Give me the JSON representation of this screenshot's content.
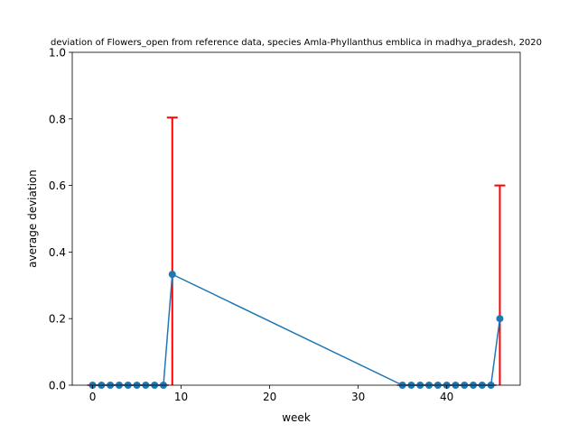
{
  "chart_data": {
    "type": "line",
    "title": "deviation of Flowers_open from reference data, species Amla-Phyllanthus emblica in madhya_pradesh, 2020",
    "xlabel": "week",
    "ylabel": "average deviation",
    "xlim": [
      -2.3,
      48.3
    ],
    "ylim": [
      0,
      1
    ],
    "x_ticks": [
      0,
      10,
      20,
      30,
      40
    ],
    "y_ticks": [
      0.0,
      0.2,
      0.4,
      0.6,
      0.8,
      1.0
    ],
    "x_tick_labels": [
      "0",
      "10",
      "20",
      "30",
      "40"
    ],
    "y_tick_labels": [
      "0.0",
      "0.2",
      "0.4",
      "0.6",
      "0.8",
      "1.0"
    ],
    "grid": false,
    "series": [
      {
        "color": "#1f77b4",
        "x": [
          0,
          1,
          2,
          3,
          4,
          5,
          6,
          7,
          8,
          9,
          35,
          36,
          37,
          38,
          39,
          40,
          41,
          42,
          43,
          44,
          45,
          46
        ],
        "y": [
          0,
          0,
          0,
          0,
          0,
          0,
          0,
          0,
          0,
          0.333,
          0,
          0,
          0,
          0,
          0,
          0,
          0,
          0,
          0,
          0,
          0,
          0.2
        ],
        "error": [
          0,
          0,
          0,
          0,
          0,
          0,
          0,
          0,
          0,
          0.471,
          0,
          0,
          0,
          0,
          0,
          0,
          0,
          0,
          0,
          0,
          0,
          0.4
        ]
      }
    ],
    "error_color": "#ff0000"
  }
}
